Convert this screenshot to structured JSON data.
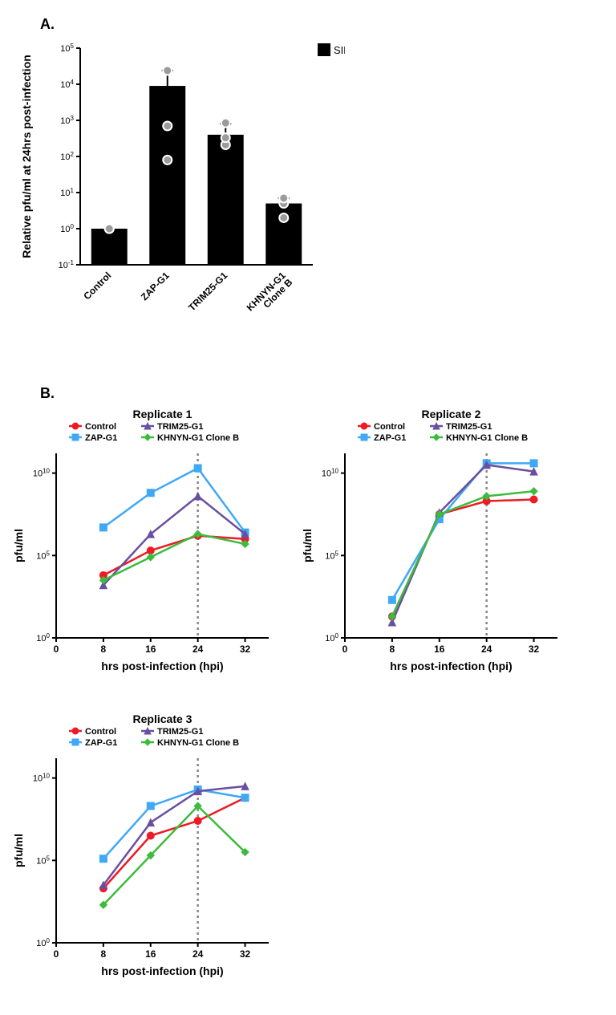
{
  "panelA": {
    "label": "A.",
    "type": "bar",
    "title": "",
    "ylabel": "Relative pfu/ml at 24hrs post-infection",
    "categories": [
      "Control",
      "ZAP-G1",
      "TRIM25-G1",
      "KHNYN-G1\nClone B"
    ],
    "values": [
      1,
      9000,
      400,
      5
    ],
    "errors": [
      0,
      15000,
      400,
      2
    ],
    "points": [
      [
        1,
        1,
        1
      ],
      [
        80,
        700,
        24000
      ],
      [
        210,
        330,
        850
      ],
      [
        2,
        5,
        7
      ]
    ],
    "ylim": [
      0.1,
      100000
    ],
    "yticks_exp": [
      -1,
      0,
      1,
      2,
      3,
      4,
      5
    ],
    "bar_color": "#000000",
    "point_fill": "#9b9b9b",
    "point_stroke": "#ffffff",
    "legend": {
      "SINV": "#000000"
    }
  },
  "panelB": {
    "label": "B.",
    "common": {
      "xlabel": "hrs post-infection (hpi)",
      "ylabel": "pfu/ml",
      "xticks": [
        0,
        8,
        16,
        24,
        32
      ],
      "xlim": [
        0,
        36
      ],
      "yticks_exp": [
        0,
        5,
        10
      ],
      "ylim_exp": [
        0,
        11.2
      ],
      "vline_x": 24,
      "vline_color": "#888888",
      "series_meta": {
        "Control": {
          "color": "#ed1c24",
          "marker": "circle"
        },
        "ZAP-G1": {
          "color": "#3fa9f5",
          "marker": "square"
        },
        "TRIM25-G1": {
          "color": "#6a4fa0",
          "marker": "triangle"
        },
        "KHNYN-G1 Clone B": {
          "color": "#3dbb3d",
          "marker": "diamond"
        }
      },
      "legend_order": [
        "Control",
        "ZAP-G1",
        "TRIM25-G1",
        "KHNYN-G1 Clone B"
      ]
    },
    "replicates": [
      {
        "title": "Replicate 1",
        "x": [
          8,
          16,
          24,
          32
        ],
        "series": {
          "Control": [
            3.8,
            5.3,
            6.2,
            6.0
          ],
          "ZAP-G1": [
            6.7,
            8.8,
            10.3,
            6.4
          ],
          "TRIM25-G1": [
            3.2,
            6.3,
            8.6,
            6.3
          ],
          "KHNYN-G1 Clone B": [
            3.5,
            4.9,
            6.3,
            5.7
          ]
        }
      },
      {
        "title": "Replicate 2",
        "x": [
          8,
          16,
          24,
          32
        ],
        "series": {
          "Control": [
            1.3,
            7.5,
            8.3,
            8.4
          ],
          "ZAP-G1": [
            2.3,
            7.2,
            10.6,
            10.6
          ],
          "TRIM25-G1": [
            0.95,
            7.6,
            10.5,
            10.1
          ],
          "KHNYN-G1 Clone B": [
            1.3,
            7.5,
            8.6,
            8.9
          ]
        }
      },
      {
        "title": "Replicate 3",
        "x": [
          8,
          16,
          24,
          32
        ],
        "series": {
          "Control": [
            3.3,
            6.5,
            7.4,
            8.8
          ],
          "ZAP-G1": [
            5.1,
            8.3,
            9.3,
            8.8
          ],
          "TRIM25-G1": [
            3.5,
            7.3,
            9.2,
            9.5
          ],
          "KHNYN-G1 Clone B": [
            2.3,
            5.3,
            8.3,
            5.5
          ]
        }
      }
    ]
  },
  "colors": {
    "background": "#ffffff",
    "axis": "#000000",
    "text": "#000000"
  },
  "fonts": {
    "axis_label_pt": 14,
    "tick_pt": 11,
    "legend_pt": 11,
    "title_pt": 14
  }
}
